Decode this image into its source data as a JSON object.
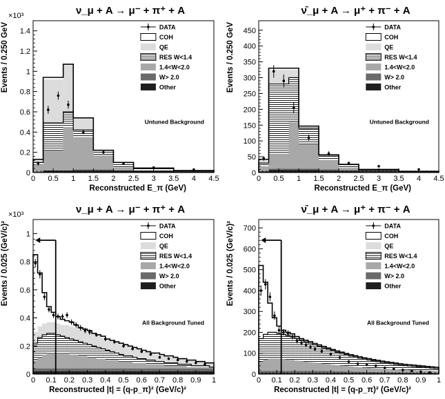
{
  "chart_data": [
    {
      "type": "bar",
      "title": "ν_μ + A → μ⁻ + π⁺ + A",
      "xlabel": "Reconstructed E_π (GeV)",
      "ylabel": "Events / 0.250 GeV",
      "y_exponent": "×10³",
      "xlim": [
        0,
        4.5
      ],
      "ylim": [
        0,
        1.5
      ],
      "xticks": [
        "0",
        "0.5",
        "1",
        "1.5",
        "2",
        "2.5",
        "3",
        "3.5",
        "4",
        "4.5"
      ],
      "yticks": [
        "0",
        "0.2",
        "0.4",
        "0.6",
        "0.8",
        "1",
        "1.2",
        "1.4"
      ],
      "annotation": "Untuned Background",
      "legend": [
        "DATA",
        "COH",
        "QE",
        "RES W<1.4",
        "1.4<W<2.0",
        "W> 2.0",
        "Other"
      ],
      "bin_edges": [
        0,
        0.25,
        0.75,
        1.0,
        1.5,
        2.0,
        2.5,
        3.5,
        4.5
      ],
      "stack": {
        "other": [
          0.005,
          0.02,
          0.02,
          0.02,
          0.02,
          0.02,
          0.02,
          0.01
        ],
        "w_gt_2": [
          0.01,
          0.02,
          0.02,
          0.03,
          0.03,
          0.02,
          0.02,
          0.01
        ],
        "w_14_20": [
          0.08,
          0.22,
          0.45,
          0.35,
          0.17,
          0.05,
          0.01,
          0.005
        ],
        "res_lt_14": [
          0.1,
          0.49,
          0.6,
          0.42,
          0.22,
          0.1,
          0.04,
          0.015
        ],
        "qe": [
          0.12,
          0.92,
          1.06,
          0.53,
          0.22,
          0.1,
          0.04,
          0.015
        ],
        "coh": [
          0.13,
          0.94,
          1.07,
          0.54,
          0.22,
          0.1,
          0.045,
          0.02
        ]
      },
      "data_points": {
        "x": [
          0.125,
          0.375,
          0.625,
          0.875,
          1.25,
          1.75,
          2.25,
          3.0,
          4.0
        ],
        "y": [
          0.09,
          0.62,
          0.76,
          0.67,
          0.4,
          0.2,
          0.09,
          0.05,
          0.03
        ],
        "err": [
          0.02,
          0.04,
          0.04,
          0.04,
          0.02,
          0.015,
          0.01,
          0.008,
          0.006
        ]
      }
    },
    {
      "type": "bar",
      "title": "ν̄_μ + A → μ⁺ + π⁻ + A",
      "xlabel": "Reconstructed E_π (GeV)",
      "ylabel": "Events / 0.250 GeV",
      "xlim": [
        0,
        4.5
      ],
      "ylim": [
        0,
        480
      ],
      "xticks": [
        "0",
        "0.5",
        "1",
        "1.5",
        "2",
        "2.5",
        "3",
        "3.5",
        "4",
        "4.5"
      ],
      "yticks": [
        "0",
        "50",
        "100",
        "150",
        "200",
        "250",
        "300",
        "350",
        "400",
        "450"
      ],
      "annotation": "Untuned Background",
      "legend": [
        "DATA",
        "COH",
        "QE",
        "RES W<1.4",
        "1.4<W<2.0",
        "W> 2.0",
        "Other"
      ],
      "bin_edges": [
        0,
        0.25,
        0.75,
        1.0,
        1.5,
        2.0,
        2.5,
        3.5,
        4.5
      ],
      "stack": {
        "other": [
          3,
          8,
          8,
          8,
          6,
          5,
          4,
          2
        ],
        "w_gt_2": [
          5,
          12,
          12,
          12,
          10,
          8,
          6,
          3
        ],
        "w_14_20": [
          20,
          60,
          160,
          90,
          40,
          15,
          5,
          2
        ],
        "res_lt_14": [
          30,
          280,
          300,
          140,
          55,
          25,
          8,
          3
        ],
        "qe": [
          40,
          325,
          325,
          145,
          55,
          25,
          9,
          3
        ],
        "coh": [
          42,
          330,
          330,
          147,
          56,
          26,
          10,
          4
        ]
      },
      "data_points": {
        "x": [
          0.125,
          0.375,
          0.625,
          0.875,
          1.25,
          1.75,
          2.25,
          3.0,
          4.0
        ],
        "y": [
          45,
          320,
          290,
          205,
          110,
          60,
          30,
          20,
          10
        ],
        "err": [
          8,
          20,
          20,
          18,
          10,
          7,
          5,
          3,
          2
        ]
      }
    },
    {
      "type": "bar",
      "title": "ν_μ + A → μ⁻ + π⁺ + A",
      "xlabel": "Reconstructed |t| = (q-p_π)² (GeV/c)²",
      "ylabel": "Events / 0.025 (GeV/c)²",
      "y_exponent": "×10³",
      "xlim": [
        0,
        1
      ],
      "ylim": [
        0,
        1.1
      ],
      "xticks": [
        "0",
        "0.1",
        "0.2",
        "0.3",
        "0.4",
        "0.5",
        "0.6",
        "0.7",
        "0.8",
        "0.9",
        "1"
      ],
      "yticks": [
        "0",
        "0.2",
        "0.4",
        "0.6",
        "0.8",
        "1"
      ],
      "annotation": "All Background Tuned",
      "cut_x": 0.125,
      "legend": [
        "DATA",
        "COH",
        "QE",
        "RES W<1.4",
        "1.4<W<2.0",
        "W> 2.0",
        "Other"
      ],
      "bin_width": 0.025,
      "stack": {
        "other": [
          0.02,
          0.02,
          0.02,
          0.02,
          0.02,
          0.02,
          0.02,
          0.02,
          0.02,
          0.02,
          0.02,
          0.02,
          0.02,
          0.02,
          0.02,
          0.02,
          0.02,
          0.02,
          0.02,
          0.02,
          0.02,
          0.02,
          0.02,
          0.02,
          0.02,
          0.02,
          0.02,
          0.02,
          0.02,
          0.02,
          0.02,
          0.02,
          0.02,
          0.02,
          0.02,
          0.02,
          0.02,
          0.02,
          0.02,
          0.02
        ],
        "w_gt_2": [
          0.04,
          0.04,
          0.04,
          0.04,
          0.04,
          0.04,
          0.04,
          0.04,
          0.04,
          0.04,
          0.04,
          0.04,
          0.04,
          0.04,
          0.04,
          0.04,
          0.04,
          0.04,
          0.04,
          0.04,
          0.04,
          0.04,
          0.04,
          0.04,
          0.04,
          0.04,
          0.04,
          0.04,
          0.04,
          0.04,
          0.04,
          0.04,
          0.04,
          0.04,
          0.04,
          0.04,
          0.04,
          0.04,
          0.04,
          0.04
        ],
        "w_14_20": [
          0.1,
          0.12,
          0.14,
          0.15,
          0.15,
          0.15,
          0.15,
          0.15,
          0.14,
          0.14,
          0.13,
          0.13,
          0.12,
          0.12,
          0.11,
          0.11,
          0.1,
          0.1,
          0.1,
          0.09,
          0.09,
          0.09,
          0.08,
          0.08,
          0.08,
          0.07,
          0.07,
          0.07,
          0.07,
          0.06,
          0.06,
          0.06,
          0.06,
          0.06,
          0.05,
          0.05,
          0.05,
          0.05,
          0.05,
          0.05
        ],
        "res_lt_14": [
          0.22,
          0.26,
          0.28,
          0.29,
          0.29,
          0.28,
          0.27,
          0.26,
          0.25,
          0.24,
          0.23,
          0.22,
          0.21,
          0.2,
          0.19,
          0.18,
          0.17,
          0.16,
          0.15,
          0.14,
          0.13,
          0.13,
          0.12,
          0.11,
          0.11,
          0.1,
          0.1,
          0.09,
          0.09,
          0.08,
          0.08,
          0.08,
          0.07,
          0.07,
          0.07,
          0.06,
          0.06,
          0.06,
          0.06,
          0.05
        ],
        "qe": [
          0.3,
          0.34,
          0.36,
          0.37,
          0.37,
          0.36,
          0.35,
          0.35,
          0.34,
          0.33,
          0.32,
          0.31,
          0.3,
          0.29,
          0.28,
          0.26,
          0.25,
          0.24,
          0.23,
          0.22,
          0.21,
          0.2,
          0.19,
          0.18,
          0.17,
          0.16,
          0.15,
          0.14,
          0.14,
          0.13,
          0.12,
          0.12,
          0.11,
          0.11,
          0.1,
          0.1,
          0.09,
          0.09,
          0.08,
          0.08
        ],
        "coh": [
          0.85,
          0.72,
          0.58,
          0.48,
          0.44,
          0.41,
          0.39,
          0.38,
          0.37,
          0.35,
          0.33,
          0.32,
          0.31,
          0.29,
          0.28,
          0.27,
          0.25,
          0.24,
          0.23,
          0.22,
          0.21,
          0.2,
          0.19,
          0.18,
          0.17,
          0.16,
          0.15,
          0.15,
          0.14,
          0.13,
          0.13,
          0.12,
          0.11,
          0.11,
          0.1,
          0.1,
          0.09,
          0.09,
          0.08,
          0.08
        ]
      },
      "data_points": {
        "x": [
          0.0125,
          0.0375,
          0.0625,
          0.0875,
          0.1125,
          0.1375,
          0.1625,
          0.1875,
          0.2125,
          0.2375,
          0.2625,
          0.2875,
          0.3125,
          0.35,
          0.4,
          0.45,
          0.5,
          0.55,
          0.6,
          0.65,
          0.7,
          0.75,
          0.8,
          0.85,
          0.9,
          0.95
        ],
        "y": [
          0.79,
          0.71,
          0.55,
          0.46,
          0.42,
          0.41,
          0.41,
          0.42,
          0.37,
          0.35,
          0.33,
          0.31,
          0.3,
          0.28,
          0.25,
          0.23,
          0.2,
          0.18,
          0.16,
          0.14,
          0.12,
          0.11,
          0.1,
          0.09,
          0.08,
          0.07
        ],
        "err": [
          0.03,
          0.03,
          0.025,
          0.02,
          0.02,
          0.02,
          0.02,
          0.02,
          0.02,
          0.02,
          0.02,
          0.02,
          0.02,
          0.015,
          0.015,
          0.015,
          0.012,
          0.012,
          0.01,
          0.01,
          0.01,
          0.01,
          0.008,
          0.008,
          0.008,
          0.008
        ]
      }
    },
    {
      "type": "bar",
      "title": "ν̄_μ + A → μ⁺ + π⁻ + A",
      "xlabel": "Reconstructed |t| = (q-p_π)² (GeV/c)²",
      "ylabel": "Events / 0.025 (GeV/c)²",
      "xlim": [
        0,
        1
      ],
      "ylim": [
        0,
        740
      ],
      "xticks": [
        "0",
        "0.1",
        "0.2",
        "0.3",
        "0.4",
        "0.5",
        "0.6",
        "0.7",
        "0.8",
        "0.9",
        "1"
      ],
      "yticks": [
        "0",
        "100",
        "200",
        "300",
        "400",
        "500",
        "600",
        "700"
      ],
      "annotation": "All Background Tuned",
      "cut_x": 0.125,
      "legend": [
        "DATA",
        "COH",
        "QE",
        "RES W<1.4",
        "1.4<W<2.0",
        "W> 2.0",
        "Other"
      ],
      "bin_width": 0.025,
      "stack": {
        "other": [
          5,
          5,
          5,
          5,
          5,
          5,
          5,
          5,
          5,
          5,
          5,
          5,
          5,
          5,
          5,
          5,
          5,
          5,
          5,
          5,
          5,
          5,
          5,
          5,
          5,
          5,
          5,
          5,
          5,
          5,
          5,
          5,
          5,
          5,
          5,
          5,
          5,
          5,
          5,
          5
        ],
        "w_gt_2": [
          15,
          15,
          15,
          15,
          15,
          15,
          15,
          15,
          15,
          15,
          15,
          15,
          15,
          15,
          15,
          14,
          14,
          13,
          13,
          12,
          12,
          11,
          11,
          10,
          10,
          10,
          9,
          9,
          9,
          8,
          8,
          8,
          7,
          7,
          7,
          6,
          6,
          6,
          6,
          5
        ],
        "w_14_20": [
          60,
          70,
          75,
          75,
          75,
          72,
          70,
          68,
          65,
          62,
          60,
          57,
          55,
          52,
          50,
          48,
          45,
          43,
          41,
          39,
          37,
          35,
          33,
          31,
          30,
          28,
          27,
          26,
          25,
          24,
          23,
          22,
          21,
          20,
          19,
          18,
          17,
          17,
          16,
          15
        ],
        "res_lt_14": [
          170,
          190,
          200,
          200,
          195,
          190,
          185,
          178,
          170,
          162,
          155,
          148,
          140,
          133,
          126,
          119,
          112,
          105,
          99,
          93,
          87,
          82,
          77,
          72,
          68,
          64,
          60,
          56,
          53,
          50,
          47,
          44,
          41,
          39,
          37,
          35,
          33,
          31,
          29,
          27
        ],
        "qe": [
          175,
          195,
          205,
          205,
          200,
          195,
          190,
          183,
          175,
          167,
          160,
          153,
          145,
          138,
          131,
          124,
          117,
          110,
          104,
          98,
          92,
          87,
          82,
          77,
          73,
          69,
          65,
          61,
          58,
          55,
          52,
          49,
          46,
          44,
          42,
          40,
          38,
          36,
          34,
          32
        ],
        "coh": [
          520,
          440,
          340,
          270,
          230,
          210,
          200,
          193,
          180,
          170,
          162,
          155,
          147,
          140,
          133,
          125,
          118,
          111,
          105,
          99,
          93,
          88,
          83,
          78,
          74,
          70,
          66,
          62,
          59,
          56,
          53,
          50,
          47,
          45,
          43,
          41,
          39,
          37,
          35,
          33
        ]
      },
      "data_points": {
        "x": [
          0.0125,
          0.0375,
          0.0625,
          0.0875,
          0.1125,
          0.1375,
          0.1625,
          0.1875,
          0.2125,
          0.2375,
          0.2625,
          0.2875,
          0.3125,
          0.35,
          0.4,
          0.45,
          0.5,
          0.55,
          0.6,
          0.65,
          0.7,
          0.75,
          0.8,
          0.85,
          0.9,
          0.95
        ],
        "y": [
          400,
          430,
          370,
          280,
          210,
          200,
          195,
          180,
          160,
          150,
          140,
          130,
          120,
          110,
          95,
          80,
          60,
          50,
          45,
          40,
          30,
          25,
          20,
          15,
          10,
          8
        ],
        "err": [
          25,
          25,
          22,
          20,
          18,
          15,
          15,
          14,
          13,
          12,
          12,
          11,
          11,
          10,
          9,
          8,
          7,
          7,
          6,
          6,
          5,
          5,
          4,
          4,
          3,
          3
        ]
      }
    }
  ],
  "colors": {
    "coh": "#ffffff",
    "qe": "#dcdcdc",
    "w_14_20": "#a8a8a8",
    "w_gt_2": "#6a6a6a",
    "other": "#1e1e1e",
    "res_bg": "#ffffff",
    "line": "#000000"
  }
}
